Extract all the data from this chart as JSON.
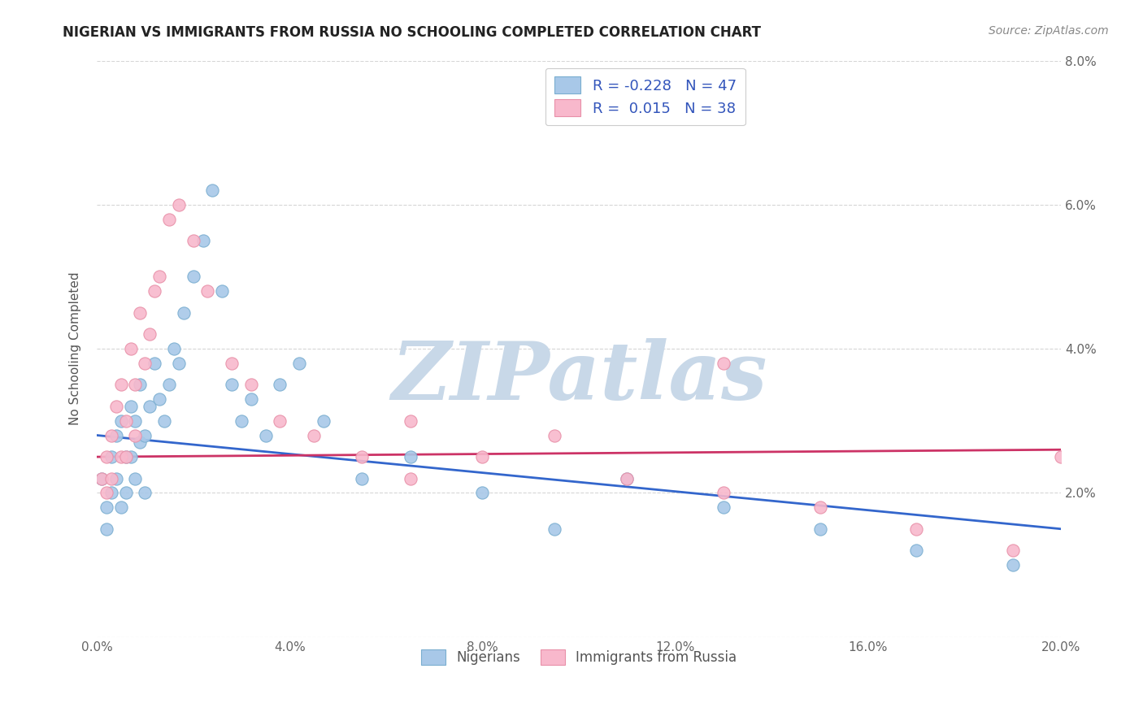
{
  "title": "NIGERIAN VS IMMIGRANTS FROM RUSSIA NO SCHOOLING COMPLETED CORRELATION CHART",
  "source": "Source: ZipAtlas.com",
  "ylabel": "No Schooling Completed",
  "xlim": [
    0.0,
    0.2
  ],
  "ylim": [
    0.0,
    0.08
  ],
  "xticks": [
    0.0,
    0.04,
    0.08,
    0.12,
    0.16,
    0.2
  ],
  "xtick_labels": [
    "0.0%",
    "4.0%",
    "8.0%",
    "12.0%",
    "16.0%",
    "20.0%"
  ],
  "yticks_right": [
    0.0,
    0.02,
    0.04,
    0.06,
    0.08
  ],
  "ytick_labels_right": [
    "",
    "2.0%",
    "4.0%",
    "6.0%",
    "8.0%"
  ],
  "legend_label_blue": "R = -0.228   N = 47",
  "legend_label_pink": "R =  0.015   N = 38",
  "legend_bottom_blue": "Nigerians",
  "legend_bottom_pink": "Immigrants from Russia",
  "blue_fill": "#a8c8e8",
  "blue_edge": "#7aaed0",
  "pink_fill": "#f8b8cc",
  "pink_edge": "#e890a8",
  "blue_line_color": "#3366cc",
  "pink_line_color": "#cc3366",
  "watermark": "ZIPatlas",
  "watermark_color": "#c8d8e8",
  "blue_R": -0.228,
  "pink_R": 0.015,
  "blue_N": 47,
  "pink_N": 38,
  "blue_line_start_y": 0.028,
  "blue_line_end_y": 0.015,
  "pink_line_start_y": 0.025,
  "pink_line_end_y": 0.026,
  "nigerians_x": [
    0.001,
    0.002,
    0.002,
    0.003,
    0.003,
    0.004,
    0.004,
    0.005,
    0.005,
    0.006,
    0.006,
    0.007,
    0.007,
    0.008,
    0.008,
    0.009,
    0.009,
    0.01,
    0.01,
    0.011,
    0.012,
    0.013,
    0.014,
    0.015,
    0.016,
    0.017,
    0.018,
    0.02,
    0.022,
    0.024,
    0.026,
    0.028,
    0.03,
    0.032,
    0.035,
    0.038,
    0.042,
    0.047,
    0.055,
    0.065,
    0.08,
    0.095,
    0.11,
    0.13,
    0.15,
    0.17,
    0.19
  ],
  "nigerians_y": [
    0.022,
    0.018,
    0.015,
    0.025,
    0.02,
    0.028,
    0.022,
    0.03,
    0.018,
    0.025,
    0.02,
    0.032,
    0.025,
    0.03,
    0.022,
    0.035,
    0.027,
    0.028,
    0.02,
    0.032,
    0.038,
    0.033,
    0.03,
    0.035,
    0.04,
    0.038,
    0.045,
    0.05,
    0.055,
    0.062,
    0.048,
    0.035,
    0.03,
    0.033,
    0.028,
    0.035,
    0.038,
    0.03,
    0.022,
    0.025,
    0.02,
    0.015,
    0.022,
    0.018,
    0.015,
    0.012,
    0.01
  ],
  "russia_x": [
    0.001,
    0.002,
    0.002,
    0.003,
    0.003,
    0.004,
    0.005,
    0.005,
    0.006,
    0.006,
    0.007,
    0.008,
    0.008,
    0.009,
    0.01,
    0.011,
    0.012,
    0.013,
    0.015,
    0.017,
    0.02,
    0.023,
    0.028,
    0.032,
    0.038,
    0.045,
    0.055,
    0.065,
    0.08,
    0.095,
    0.11,
    0.13,
    0.15,
    0.17,
    0.19,
    0.2,
    0.13,
    0.065
  ],
  "russia_y": [
    0.022,
    0.025,
    0.02,
    0.028,
    0.022,
    0.032,
    0.025,
    0.035,
    0.03,
    0.025,
    0.04,
    0.028,
    0.035,
    0.045,
    0.038,
    0.042,
    0.048,
    0.05,
    0.058,
    0.06,
    0.055,
    0.048,
    0.038,
    0.035,
    0.03,
    0.028,
    0.025,
    0.022,
    0.025,
    0.028,
    0.022,
    0.02,
    0.018,
    0.015,
    0.012,
    0.025,
    0.038,
    0.03
  ]
}
